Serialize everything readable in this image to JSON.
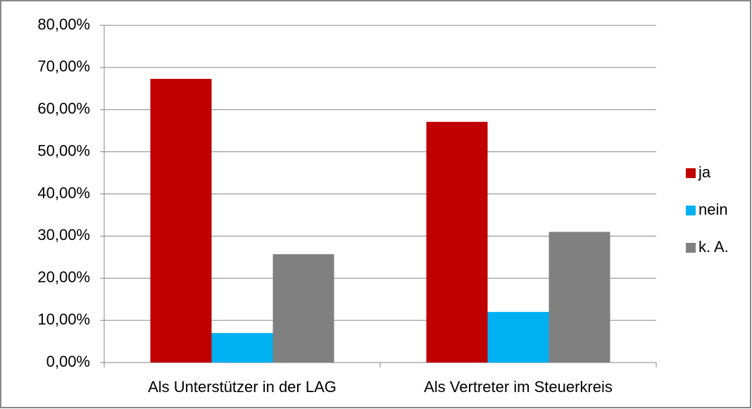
{
  "chart_data": {
    "type": "bar",
    "categories": [
      "Als Unterstützer in der LAG",
      "Als Vertreter im Steuerkreis"
    ],
    "series": [
      {
        "name": "ja",
        "color": "#c00000",
        "values": [
          67.3,
          57.1
        ]
      },
      {
        "name": "nein",
        "color": "#00b0f0",
        "values": [
          7.0,
          12.0
        ]
      },
      {
        "name": "k. A.",
        "color": "#808080",
        "values": [
          25.7,
          31.0
        ]
      }
    ],
    "ylim": [
      0,
      80
    ],
    "yticks": [
      {
        "value": 0,
        "label": "0,00%"
      },
      {
        "value": 10,
        "label": "10,00%"
      },
      {
        "value": 20,
        "label": "20,00%"
      },
      {
        "value": 30,
        "label": "30,00%"
      },
      {
        "value": 40,
        "label": "40,00%"
      },
      {
        "value": 50,
        "label": "50,00%"
      },
      {
        "value": 60,
        "label": "60,00%"
      },
      {
        "value": 70,
        "label": "70,00%"
      },
      {
        "value": 80,
        "label": "80,00%"
      }
    ],
    "grid": true,
    "legend": "right"
  }
}
